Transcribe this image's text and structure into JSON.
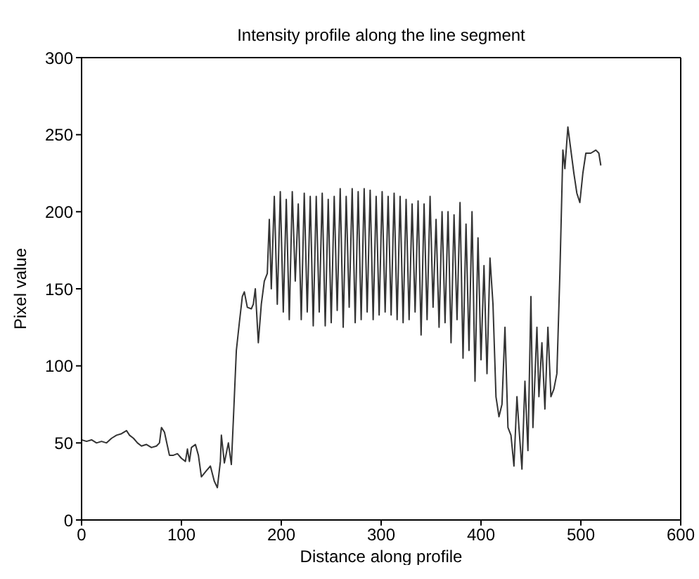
{
  "chart_data": {
    "type": "line",
    "title": "Intensity profile along the line segment",
    "xlabel": "Distance along profile",
    "ylabel": "Pixel value",
    "xlim": [
      0,
      600
    ],
    "xticks": [
      0,
      100,
      200,
      300,
      400,
      500,
      600
    ],
    "ylim": [
      0,
      300
    ],
    "yticks": [
      0,
      50,
      100,
      150,
      200,
      250,
      300
    ],
    "marker": "none",
    "line_style": "solid",
    "series": [
      {
        "color": "#333333",
        "x": [
          0,
          5,
          10,
          15,
          20,
          25,
          30,
          35,
          40,
          45,
          48,
          52,
          56,
          60,
          65,
          70,
          75,
          78,
          80,
          83,
          86,
          88,
          92,
          96,
          100,
          104,
          106,
          108,
          110,
          114,
          117,
          120,
          125,
          129,
          133,
          136,
          139,
          140,
          143,
          147,
          150,
          152,
          155,
          158,
          161,
          163,
          166,
          170,
          172,
          174,
          177,
          180,
          183,
          186,
          188,
          190,
          193,
          196,
          199,
          202,
          205,
          208,
          211,
          214,
          217,
          220,
          223,
          226,
          229,
          232,
          235,
          238,
          241,
          244,
          247,
          250,
          253,
          256,
          259,
          262,
          265,
          268,
          271,
          274,
          277,
          280,
          283,
          286,
          289,
          292,
          295,
          298,
          301,
          304,
          307,
          310,
          313,
          316,
          319,
          322,
          325,
          328,
          331,
          334,
          337,
          340,
          343,
          346,
          349,
          352,
          355,
          358,
          361,
          364,
          367,
          370,
          373,
          376,
          379,
          382,
          385,
          388,
          391,
          394,
          397,
          400,
          403,
          406,
          409,
          412,
          415,
          418,
          421,
          424,
          427,
          430,
          433,
          436,
          438,
          441,
          444,
          447,
          450,
          452,
          456,
          458,
          461,
          464,
          467,
          470,
          473,
          476,
          479,
          482,
          484,
          487,
          490,
          493,
          496,
          499,
          502,
          505,
          510,
          515,
          518,
          520
        ],
        "values": [
          52,
          51,
          52,
          50,
          51,
          50,
          53,
          55,
          56,
          58,
          55,
          53,
          50,
          48,
          49,
          47,
          48,
          50,
          60,
          57,
          48,
          42,
          42,
          43,
          40,
          38,
          46,
          38,
          47,
          49,
          42,
          28,
          32,
          35,
          25,
          21,
          38,
          55,
          37,
          50,
          36,
          65,
          110,
          128,
          145,
          148,
          138,
          137,
          140,
          150,
          115,
          140,
          155,
          160,
          195,
          150,
          210,
          140,
          213,
          135,
          208,
          130,
          213,
          155,
          205,
          130,
          212,
          135,
          210,
          126,
          210,
          135,
          212,
          126,
          208,
          128,
          210,
          136,
          215,
          125,
          210,
          138,
          215,
          128,
          213,
          130,
          215,
          135,
          214,
          130,
          210,
          133,
          213,
          135,
          210,
          133,
          212,
          130,
          210,
          128,
          208,
          130,
          205,
          135,
          207,
          120,
          205,
          130,
          210,
          138,
          195,
          125,
          200,
          128,
          200,
          115,
          198,
          130,
          206,
          105,
          192,
          110,
          200,
          90,
          183,
          104,
          165,
          95,
          170,
          140,
          80,
          67,
          75,
          125,
          60,
          55,
          35,
          80,
          60,
          33,
          90,
          45,
          145,
          60,
          125,
          80,
          115,
          72,
          125,
          80,
          85,
          95,
          160,
          240,
          228,
          255,
          240,
          225,
          212,
          206,
          225,
          238,
          238,
          240,
          238,
          230
        ]
      }
    ]
  }
}
